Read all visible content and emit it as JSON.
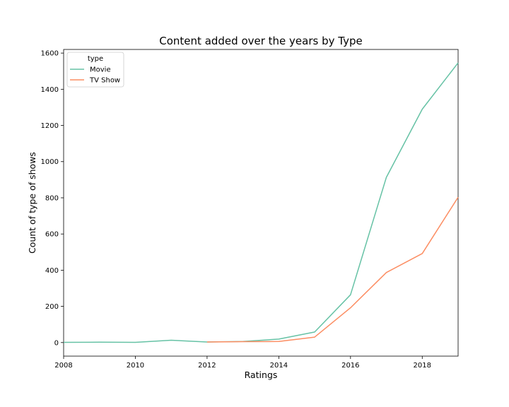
{
  "chart_data": {
    "type": "line",
    "title": "Content added over the years by Type",
    "xlabel": "Ratings",
    "ylabel": "Count of type of shows",
    "xlim": [
      2008,
      2019
    ],
    "ylim": [
      -75,
      1620
    ],
    "xticks": [
      2008,
      2010,
      2012,
      2014,
      2016,
      2018
    ],
    "yticks": [
      0,
      200,
      400,
      600,
      800,
      1000,
      1200,
      1400,
      1600
    ],
    "grid": false,
    "legend": {
      "title": "type",
      "placement": "top-left"
    },
    "series": [
      {
        "name": "Movie",
        "color": "#66c2a5",
        "x": [
          2008,
          2009,
          2010,
          2011,
          2012,
          2013,
          2014,
          2015,
          2016,
          2017,
          2018,
          2019
        ],
        "y": [
          1,
          2,
          1,
          13,
          3,
          6,
          19,
          58,
          264,
          913,
          1290,
          1546
        ]
      },
      {
        "name": "TV Show",
        "color": "#fc8d62",
        "x": [
          2012,
          2013,
          2014,
          2015,
          2016,
          2017,
          2018,
          2019
        ],
        "y": [
          3,
          5,
          6,
          30,
          192,
          387,
          492,
          803
        ]
      }
    ]
  }
}
